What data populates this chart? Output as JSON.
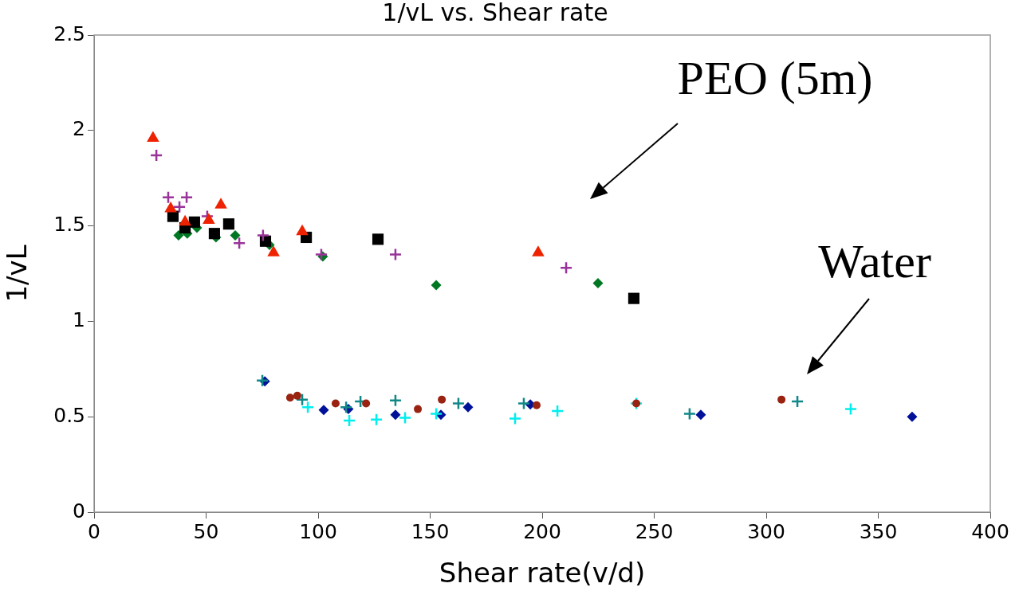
{
  "chart_data": {
    "type": "scatter",
    "title": "1/vL vs. Shear rate",
    "xlabel": "Shear rate(v/d)",
    "ylabel": "1/vL",
    "xlim": [
      0,
      400
    ],
    "xticks": [
      0,
      50,
      100,
      150,
      200,
      250,
      300,
      350,
      400
    ],
    "ylim": [
      0,
      2.5
    ],
    "yticks": [
      0,
      {
        "value": 0.5,
        "label": "0.5"
      },
      1,
      {
        "value": 1.5,
        "label": "1.5"
      },
      2,
      {
        "value": 2.5,
        "label": "2.5"
      }
    ],
    "grid": false,
    "legend": false,
    "annotations": [
      "PEO (5m)",
      "Water"
    ],
    "series": [
      {
        "color": "#ee2200",
        "marker": "triangle",
        "x": [
          26.3,
          34.2,
          40.6,
          51.2,
          56.6,
          80.1,
          92.9,
          198.2
        ],
        "values": [
          1.96,
          1.59,
          1.52,
          1.53,
          1.61,
          1.36,
          1.47,
          1.36
        ]
      },
      {
        "color": "#993399",
        "marker": "cross",
        "x": [
          27.8,
          33.1,
          38.1,
          41.3,
          50.5,
          64.8,
          75.4,
          101.4,
          134.5,
          210.7
        ],
        "values": [
          1.87,
          1.65,
          1.6,
          1.65,
          1.55,
          1.41,
          1.45,
          1.35,
          1.35,
          1.28
        ]
      },
      {
        "color": "#000000",
        "marker": "square",
        "x": [
          35.2,
          40.6,
          44.8,
          53.7,
          60.1,
          76.5,
          94.7,
          126.7,
          240.9
        ],
        "values": [
          1.55,
          1.49,
          1.52,
          1.46,
          1.51,
          1.42,
          1.44,
          1.43,
          1.12
        ]
      },
      {
        "color": "#007722",
        "marker": "diamond",
        "x": [
          37.7,
          41.6,
          45.9,
          54.4,
          63,
          78.3,
          102.1,
          152.7,
          224.9
        ],
        "values": [
          1.45,
          1.46,
          1.49,
          1.44,
          1.45,
          1.4,
          1.34,
          1.19,
          1.2
        ]
      },
      {
        "color": "#992211",
        "marker": "circle",
        "x": [
          87.5,
          90.7,
          107.8,
          121.4,
          144.5,
          155.2,
          197.5,
          242,
          306.8
        ],
        "values": [
          0.6,
          0.61,
          0.57,
          0.57,
          0.54,
          0.59,
          0.56,
          0.57,
          0.59
        ]
      },
      {
        "color": "#118888",
        "marker": "cross",
        "x": [
          75.1,
          92.9,
          112.5,
          118.9,
          134.5,
          162.6,
          191.8,
          265.8,
          313.9
        ],
        "values": [
          0.69,
          0.59,
          0.55,
          0.58,
          0.585,
          0.57,
          0.57,
          0.515,
          0.58
        ]
      },
      {
        "color": "#00eeee",
        "marker": "cross",
        "x": [
          95.4,
          113.9,
          126,
          138.8,
          152.7,
          187.9,
          206.8,
          242,
          337.7
        ],
        "values": [
          0.55,
          0.48,
          0.485,
          0.495,
          0.515,
          0.49,
          0.53,
          0.57,
          0.54
        ]
      },
      {
        "color": "#001199",
        "marker": "diamond",
        "x": [
          76.2,
          102.5,
          113.5,
          134.5,
          154.8,
          166.9,
          194.7,
          270.8,
          365.1
        ],
        "values": [
          0.685,
          0.535,
          0.54,
          0.51,
          0.51,
          0.55,
          0.565,
          0.51,
          0.5
        ]
      }
    ]
  }
}
